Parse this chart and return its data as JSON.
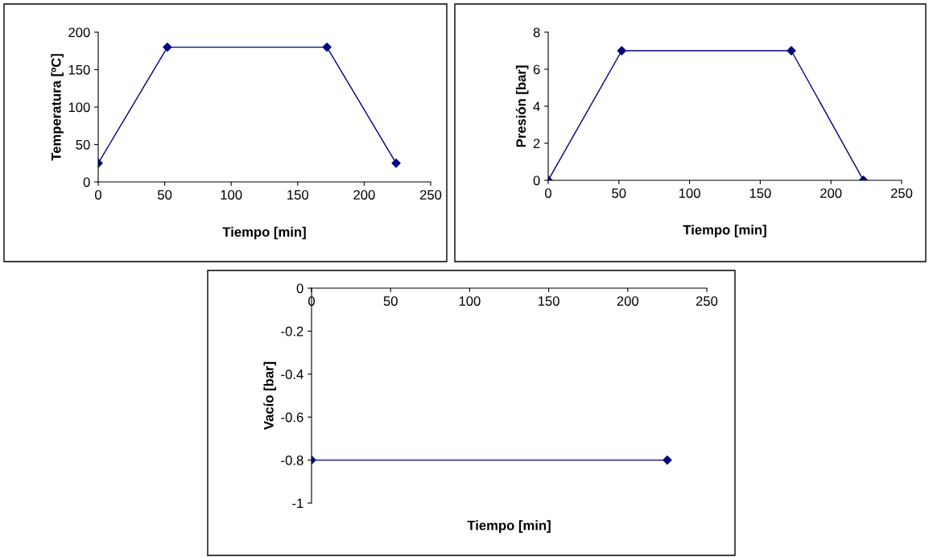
{
  "chart_data": [
    {
      "type": "line",
      "xlabel": "Tiempo [min]",
      "ylabel": "Temperatura [ºC]",
      "x": [
        0,
        52,
        172,
        224
      ],
      "series": [
        {
          "color": "#000080",
          "values": [
            25,
            180,
            180,
            25
          ]
        }
      ],
      "xlim": [
        0,
        250
      ],
      "xticks": [
        0,
        50,
        100,
        150,
        200,
        250
      ],
      "ylim": [
        0,
        200
      ],
      "yticks": [
        0,
        50,
        100,
        150,
        200
      ],
      "marker": "diamond",
      "grid": false,
      "legend": false
    },
    {
      "type": "line",
      "xlabel": "Tiempo [min]",
      "ylabel": "Presión [bar]",
      "x": [
        0,
        52,
        172,
        223
      ],
      "series": [
        {
          "color": "#000080",
          "values": [
            0,
            7,
            7,
            0
          ]
        }
      ],
      "xlim": [
        0,
        250
      ],
      "xticks": [
        0,
        50,
        100,
        150,
        200,
        250
      ],
      "ylim": [
        0,
        8
      ],
      "yticks": [
        0,
        2,
        4,
        6,
        8
      ],
      "marker": "diamond",
      "grid": false,
      "legend": false
    },
    {
      "type": "line",
      "xlabel": "Tiempo [min]",
      "ylabel": "Vacío [bar]",
      "x": [
        0,
        225
      ],
      "series": [
        {
          "color": "#000080",
          "values": [
            -0.8,
            -0.8
          ]
        }
      ],
      "xlim": [
        0,
        250
      ],
      "xticks": [
        0,
        50,
        100,
        150,
        200,
        250
      ],
      "ylim": [
        -1,
        0
      ],
      "yticks": [
        -1,
        -0.8,
        -0.6,
        -0.4,
        -0.2,
        0
      ],
      "marker": "diamond",
      "grid": false,
      "legend": false
    }
  ]
}
